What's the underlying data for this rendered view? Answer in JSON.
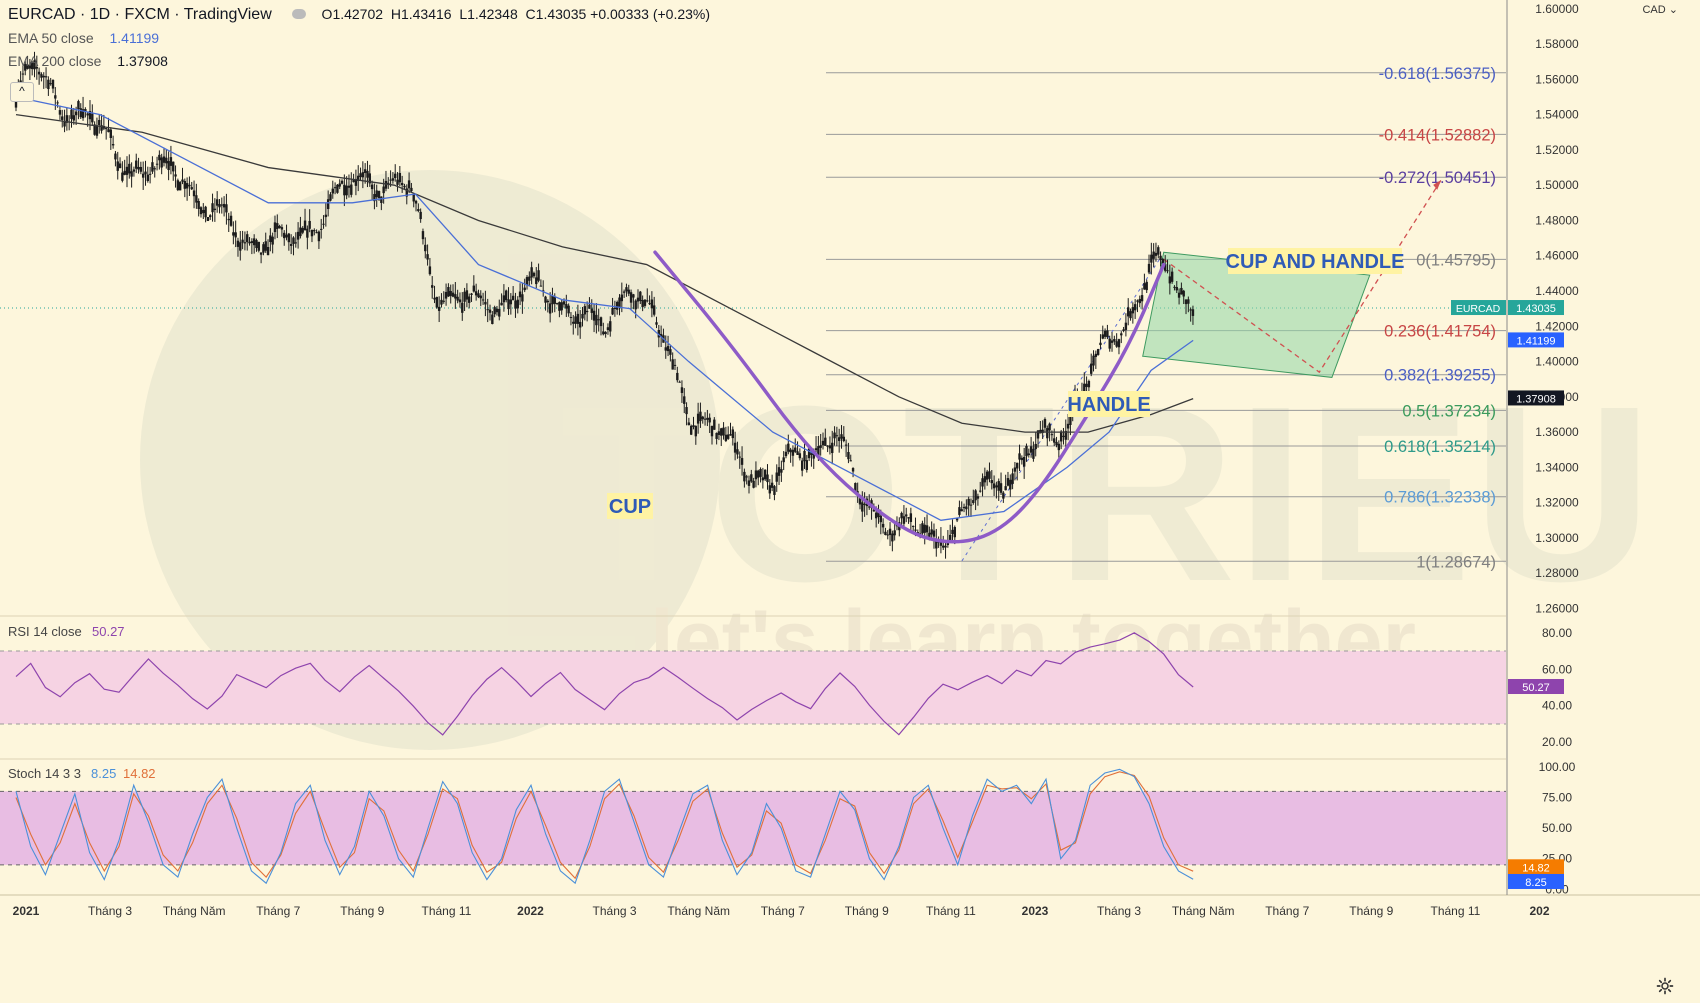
{
  "header": {
    "symbol": "EURCAD · 1D · FXCM · TradingView",
    "ohlc": [
      {
        "label": "O",
        "value": "1.42702"
      },
      {
        "label": "H",
        "value": "1.43416"
      },
      {
        "label": "L",
        "value": "1.42348"
      },
      {
        "label": "C",
        "value": "1.43035"
      }
    ],
    "change": "+0.00333 (+0.23%)",
    "ema50_label": "EMA 50 close",
    "ema50_value": "1.41199",
    "ema200_label": "EMA 200 close",
    "ema200_value": "1.37908",
    "currency": "CAD"
  },
  "colors": {
    "background": "#fdf6dc",
    "candle": "#1c1c1c",
    "ema50": "#4a6fd6",
    "ema200": "#3a3a3a",
    "cup": "#8e5bc7",
    "rsi": "#8e44ad",
    "rsi_band": "#f6d3e3",
    "stoch_band": "#e8bde3",
    "stoch_k": "#4a90d9",
    "stoch_d": "#e0703a",
    "handle_box": "#8fd6a5",
    "projection": "#d05050"
  },
  "annotations": {
    "cup_label": "CUP",
    "handle_label": "HANDLE",
    "title_label": "CUP AND HANDLE",
    "watermark_main": "TOTRIEU",
    "watermark_sub": "let's learn together"
  },
  "chart_data": [
    {
      "type": "line",
      "name": "EURCAD daily price",
      "x_ticks": [
        "2021",
        "Tháng 3",
        "Tháng Năm",
        "Tháng 7",
        "Tháng 9",
        "Tháng 11",
        "2022",
        "Tháng 3",
        "Tháng Năm",
        "Tháng 7",
        "Tháng 9",
        "Tháng 11",
        "2023",
        "Tháng 3",
        "Tháng Năm",
        "Tháng 7",
        "Tháng 9",
        "Tháng 11",
        "202"
      ],
      "y_ticks": [
        "1.60000",
        "1.58000",
        "1.56000",
        "1.54000",
        "1.52000",
        "1.50000",
        "1.48000",
        "1.46000",
        "1.44000",
        "1.42000",
        "1.40000",
        "1.38000",
        "1.36000",
        "1.34000",
        "1.32000",
        "1.30000",
        "1.28000",
        "1.26000"
      ],
      "ylim": [
        1.258,
        1.605
      ],
      "xlim_months": [
        0,
        35.5
      ],
      "price_path": [
        [
          0,
          1.55
        ],
        [
          0.5,
          1.565
        ],
        [
          1.2,
          1.545
        ],
        [
          2,
          1.53
        ],
        [
          3,
          1.505
        ],
        [
          4,
          1.51
        ],
        [
          4.5,
          1.485
        ],
        [
          5.5,
          1.47
        ],
        [
          6.5,
          1.465
        ],
        [
          7.5,
          1.49
        ],
        [
          8.3,
          1.505
        ],
        [
          9,
          1.5
        ],
        [
          9.4,
          1.495
        ],
        [
          10,
          1.44
        ],
        [
          11,
          1.43
        ],
        [
          12,
          1.44
        ],
        [
          13,
          1.435
        ],
        [
          14,
          1.415
        ],
        [
          14.6,
          1.45
        ],
        [
          15.2,
          1.42
        ],
        [
          16,
          1.375
        ],
        [
          17,
          1.35
        ],
        [
          18,
          1.33
        ],
        [
          18.8,
          1.35
        ],
        [
          19.5,
          1.36
        ],
        [
          20,
          1.325
        ],
        [
          21,
          1.305
        ],
        [
          21.8,
          1.3
        ],
        [
          22.5,
          1.31
        ],
        [
          23.2,
          1.33
        ],
        [
          24,
          1.345
        ],
        [
          24.8,
          1.36
        ],
        [
          25.5,
          1.39
        ],
        [
          26.3,
          1.42
        ],
        [
          27,
          1.455
        ],
        [
          27.5,
          1.445
        ],
        [
          28,
          1.43
        ]
      ],
      "ema50_path": [
        [
          0,
          1.55
        ],
        [
          2,
          1.54
        ],
        [
          4,
          1.515
        ],
        [
          6,
          1.49
        ],
        [
          8,
          1.49
        ],
        [
          9.5,
          1.495
        ],
        [
          11,
          1.455
        ],
        [
          13,
          1.435
        ],
        [
          14.6,
          1.43
        ],
        [
          16,
          1.4
        ],
        [
          18,
          1.36
        ],
        [
          20,
          1.335
        ],
        [
          22,
          1.31
        ],
        [
          23.5,
          1.315
        ],
        [
          25,
          1.34
        ],
        [
          26,
          1.36
        ],
        [
          27,
          1.395
        ],
        [
          28,
          1.412
        ]
      ],
      "ema200_path": [
        [
          0,
          1.54
        ],
        [
          3,
          1.53
        ],
        [
          6,
          1.51
        ],
        [
          9,
          1.5
        ],
        [
          11,
          1.48
        ],
        [
          13,
          1.465
        ],
        [
          15,
          1.455
        ],
        [
          17,
          1.43
        ],
        [
          19,
          1.405
        ],
        [
          21,
          1.38
        ],
        [
          22.5,
          1.365
        ],
        [
          24,
          1.36
        ],
        [
          25.5,
          1.36
        ],
        [
          27,
          1.37
        ],
        [
          28,
          1.379
        ]
      ],
      "cup_path": [
        [
          15.2,
          1.462
        ],
        [
          17,
          1.41
        ],
        [
          19,
          1.345
        ],
        [
          21,
          1.305
        ],
        [
          22.2,
          1.296
        ],
        [
          23.3,
          1.302
        ],
        [
          24.3,
          1.325
        ],
        [
          25.5,
          1.37
        ],
        [
          26.5,
          1.41
        ],
        [
          27.3,
          1.455
        ]
      ],
      "handle_box": [
        [
          27.3,
          1.462
        ],
        [
          32.2,
          1.449
        ],
        [
          31.3,
          1.391
        ],
        [
          26.8,
          1.403
        ]
      ],
      "projection_path": [
        [
          27.3,
          1.458
        ],
        [
          31,
          1.394
        ],
        [
          33.9,
          1.503
        ]
      ],
      "rise_line": [
        [
          22.5,
          1.287
        ],
        [
          27.2,
          1.458
        ]
      ],
      "last_price": {
        "label": "EURCAD",
        "value": "1.43035"
      }
    },
    {
      "type": "line",
      "name": "Fibonacci levels",
      "levels": [
        {
          "label": "-0.618(1.56375)",
          "ratio": -0.618,
          "price": 1.56375,
          "color": "#4b5fc4"
        },
        {
          "label": "-0.414(1.52882)",
          "ratio": -0.414,
          "price": 1.52882,
          "color": "#c74545"
        },
        {
          "label": "-0.272(1.50451)",
          "ratio": -0.272,
          "price": 1.50451,
          "color": "#5a3fa0"
        },
        {
          "label": "0(1.45795)",
          "ratio": 0,
          "price": 1.45795,
          "color": "#808080"
        },
        {
          "label": "0.236(1.41754)",
          "ratio": 0.236,
          "price": 1.41754,
          "color": "#c74545"
        },
        {
          "label": "0.382(1.39255)",
          "ratio": 0.382,
          "price": 1.39255,
          "color": "#4b5fc4"
        },
        {
          "label": "0.5(1.37234)",
          "ratio": 0.5,
          "price": 1.37234,
          "color": "#3a9a5c"
        },
        {
          "label": "0.618(1.35214)",
          "ratio": 0.618,
          "price": 1.35214,
          "color": "#2e9a8a"
        },
        {
          "label": "0.786(1.32338)",
          "ratio": 0.786,
          "price": 1.32338,
          "color": "#5b9bd5"
        },
        {
          "label": "1(1.28674)",
          "ratio": 1,
          "price": 1.28674,
          "color": "#808080"
        }
      ],
      "price_tags": [
        {
          "label": "EURCAD",
          "value": "1.43035",
          "color": "#26a69a"
        },
        {
          "value": "1.41199",
          "color": "#2962ff"
        },
        {
          "value": "1.37908",
          "color": "#131722"
        }
      ]
    },
    {
      "type": "line",
      "name": "RSI 14 close",
      "label": "RSI 14 close",
      "value_label": "50.27",
      "y_ticks": [
        "80.00",
        "60.00",
        "40.00",
        "20.00"
      ],
      "ylim": [
        13,
        87
      ],
      "band": [
        30,
        70
      ],
      "values": [
        56,
        61,
        47,
        43,
        53,
        60,
        52,
        49,
        56,
        63,
        55,
        50,
        45,
        41,
        48,
        58,
        52,
        47,
        54,
        60,
        65,
        57,
        50,
        56,
        60,
        52,
        46,
        40,
        33,
        27,
        36,
        45,
        52,
        58,
        52,
        46,
        55,
        61,
        50,
        42,
        35,
        44,
        52,
        57,
        64,
        58,
        50,
        42,
        36,
        30,
        38,
        45,
        50,
        44,
        38,
        47,
        55,
        49,
        41,
        34,
        27,
        35,
        43,
        49,
        46,
        52,
        58,
        55,
        62,
        57,
        63,
        60,
        67,
        72,
        76,
        79,
        82,
        75,
        66,
        54,
        50.27
      ]
    },
    {
      "type": "line",
      "name": "Stoch 14 3 3",
      "label": "Stoch 14 3 3",
      "k_label": "8.25",
      "d_label": "14.82",
      "y_ticks": [
        "100.00",
        "75.00",
        "50.00",
        "25.00",
        "0.00"
      ],
      "ylim": [
        -3,
        104
      ],
      "band": [
        20,
        80
      ],
      "k_values": [
        80,
        35,
        12,
        45,
        78,
        30,
        8,
        40,
        85,
        55,
        20,
        10,
        45,
        75,
        90,
        50,
        15,
        5,
        30,
        70,
        85,
        40,
        12,
        35,
        80,
        60,
        25,
        10,
        50,
        88,
        70,
        30,
        8,
        25,
        65,
        85,
        45,
        15,
        5,
        40,
        80,
        90,
        55,
        20,
        10,
        45,
        78,
        85,
        40,
        12,
        30,
        70,
        50,
        15,
        10,
        45,
        80,
        65,
        25,
        8,
        35,
        75,
        85,
        50,
        20,
        60,
        90,
        80,
        85,
        70,
        90,
        25,
        40,
        85,
        95,
        98,
        92,
        70,
        35,
        15,
        8.25
      ],
      "d_values": [
        75,
        45,
        20,
        38,
        70,
        38,
        15,
        35,
        78,
        60,
        28,
        15,
        38,
        70,
        85,
        58,
        22,
        10,
        28,
        62,
        80,
        48,
        18,
        30,
        74,
        64,
        32,
        15,
        45,
        82,
        74,
        36,
        14,
        22,
        58,
        80,
        52,
        22,
        9,
        35,
        74,
        86,
        60,
        26,
        14,
        40,
        72,
        82,
        46,
        18,
        28,
        64,
        54,
        20,
        13,
        40,
        74,
        68,
        30,
        13,
        32,
        70,
        82,
        56,
        26,
        55,
        85,
        82,
        83,
        74,
        86,
        32,
        38,
        78,
        92,
        96,
        93,
        76,
        42,
        20,
        14.82
      ]
    }
  ]
}
